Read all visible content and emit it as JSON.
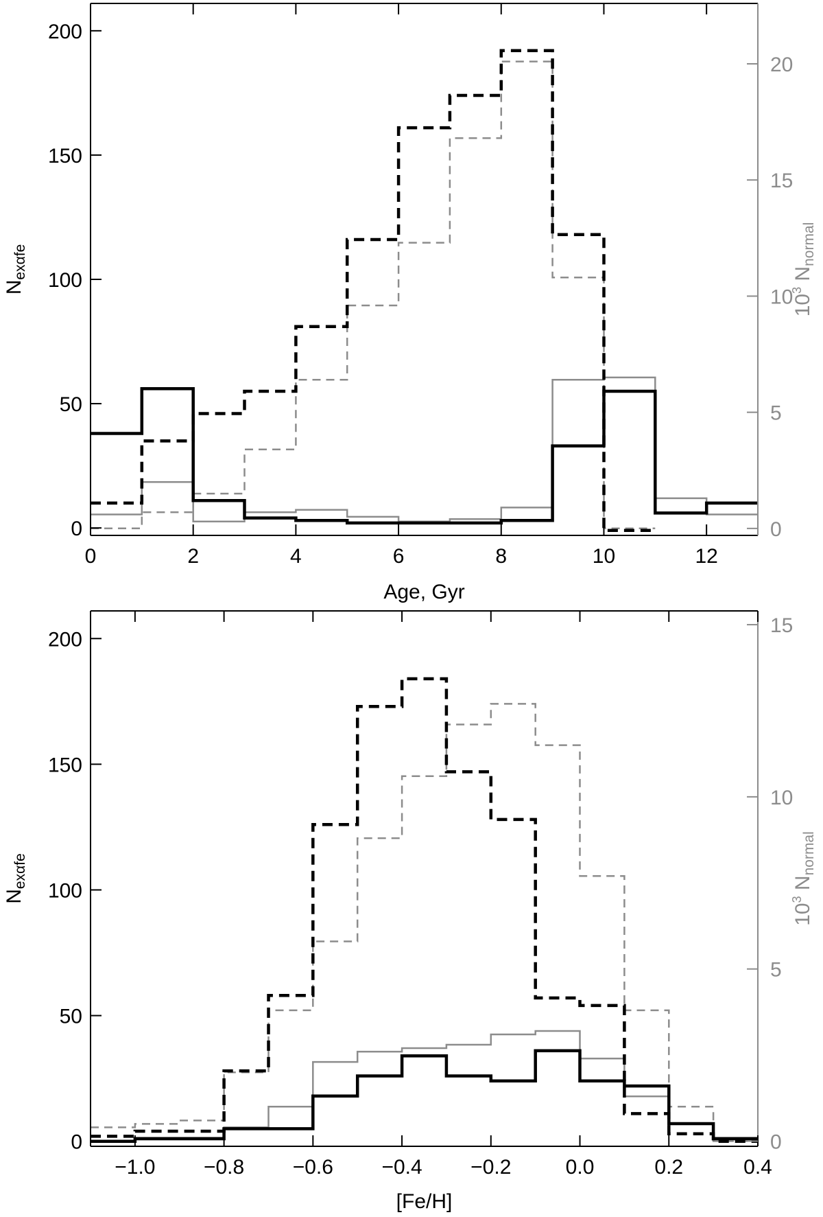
{
  "colors": {
    "black": "#000000",
    "gray": "#8c8c8c"
  },
  "chart_data": [
    {
      "type": "step-histogram",
      "xlabel": "Age, Gyr",
      "ylabel_left": {
        "base": "N",
        "sub": "exαfe"
      },
      "ylabel_right": {
        "pre": "10",
        "sup": "3",
        "mid": " N",
        "sub": "normal"
      },
      "xlim": [
        0,
        13
      ],
      "ylim_left": [
        -3,
        211
      ],
      "ylim_right": [
        -0.3,
        22.6
      ],
      "x_ticks": [
        0,
        2,
        4,
        6,
        8,
        10,
        12
      ],
      "x_tick_labels": [
        "0",
        "2",
        "4",
        "6",
        "8",
        "10",
        "12"
      ],
      "y_ticks_left": [
        0,
        50,
        100,
        150,
        200
      ],
      "y_tick_labels_left": [
        "0",
        "50",
        "100",
        "150",
        "200"
      ],
      "y_ticks_right": [
        0,
        5,
        10,
        15,
        20
      ],
      "y_tick_labels_right": [
        "0",
        "5",
        "10",
        "15",
        "20"
      ],
      "bin_edges": [
        0,
        1,
        2,
        3,
        4,
        5,
        6,
        7,
        8,
        9,
        10,
        11,
        12,
        13
      ],
      "series": [
        {
          "axis": "left",
          "style": "solid-black",
          "values": [
            38,
            56,
            11,
            4,
            3,
            2,
            2,
            2,
            3,
            33,
            55,
            6,
            10
          ]
        },
        {
          "axis": "left",
          "style": "dashed-black",
          "values": [
            10,
            35,
            46,
            55,
            81,
            116,
            161,
            174,
            192,
            118,
            -1,
            null,
            null
          ]
        },
        {
          "axis": "right",
          "style": "solid-gray",
          "values": [
            0.6,
            2.0,
            0.3,
            0.7,
            0.8,
            0.5,
            0.3,
            0.4,
            0.9,
            6.4,
            6.5,
            1.3,
            0.6
          ]
        },
        {
          "axis": "right",
          "style": "dashed-gray",
          "values": [
            0.0,
            0.7,
            1.5,
            3.4,
            6.4,
            9.6,
            12.3,
            16.8,
            20.1,
            10.8,
            0.0,
            null,
            null
          ]
        }
      ]
    },
    {
      "type": "step-histogram",
      "xlabel": "[Fe/H]",
      "ylabel_left": {
        "base": "N",
        "sub": "exαfe"
      },
      "ylabel_right": {
        "pre": "10",
        "sup": "3",
        "mid": " N",
        "sub": "normal"
      },
      "xlim": [
        -1.1,
        0.4
      ],
      "ylim_left": [
        -2,
        211
      ],
      "ylim_right": [
        -0.15,
        15.4
      ],
      "x_ticks": [
        -1.0,
        -0.8,
        -0.6,
        -0.4,
        -0.2,
        0.0,
        0.2,
        0.4
      ],
      "x_tick_labels": [
        "−1.0",
        "−0.8",
        "−0.6",
        "−0.4",
        "−0.2",
        "0.0",
        "0.2",
        "0.4"
      ],
      "y_ticks_left": [
        0,
        50,
        100,
        150,
        200
      ],
      "y_tick_labels_left": [
        "0",
        "50",
        "100",
        "150",
        "200"
      ],
      "y_ticks_right": [
        0,
        5,
        10,
        15
      ],
      "y_tick_labels_right": [
        "0",
        "5",
        "10",
        "15"
      ],
      "bin_edges": [
        -1.1,
        -1.0,
        -0.9,
        -0.8,
        -0.7,
        -0.6,
        -0.5,
        -0.4,
        -0.3,
        -0.2,
        -0.1,
        0.0,
        0.1,
        0.2,
        0.3,
        0.4
      ],
      "series": [
        {
          "axis": "left",
          "style": "solid-black",
          "values": [
            0,
            1,
            1,
            5,
            5,
            18,
            26,
            34,
            26,
            24,
            36,
            24,
            22,
            7,
            1
          ]
        },
        {
          "axis": "left",
          "style": "dashed-black",
          "values": [
            2,
            4,
            4,
            28,
            58,
            126,
            173,
            184,
            147,
            128,
            57,
            54,
            11,
            3,
            0
          ]
        },
        {
          "axis": "right",
          "style": "solid-gray",
          "values": [
            0.0,
            0.1,
            0.1,
            0.4,
            1.0,
            2.3,
            2.6,
            2.7,
            2.8,
            3.1,
            3.2,
            2.4,
            1.3,
            0.5,
            0.1
          ]
        },
        {
          "axis": "right",
          "style": "dashed-gray",
          "values": [
            0.4,
            0.5,
            0.6,
            2.0,
            3.8,
            5.8,
            8.8,
            10.6,
            12.1,
            12.7,
            11.5,
            7.7,
            3.8,
            1.0,
            0.0
          ]
        }
      ]
    }
  ]
}
